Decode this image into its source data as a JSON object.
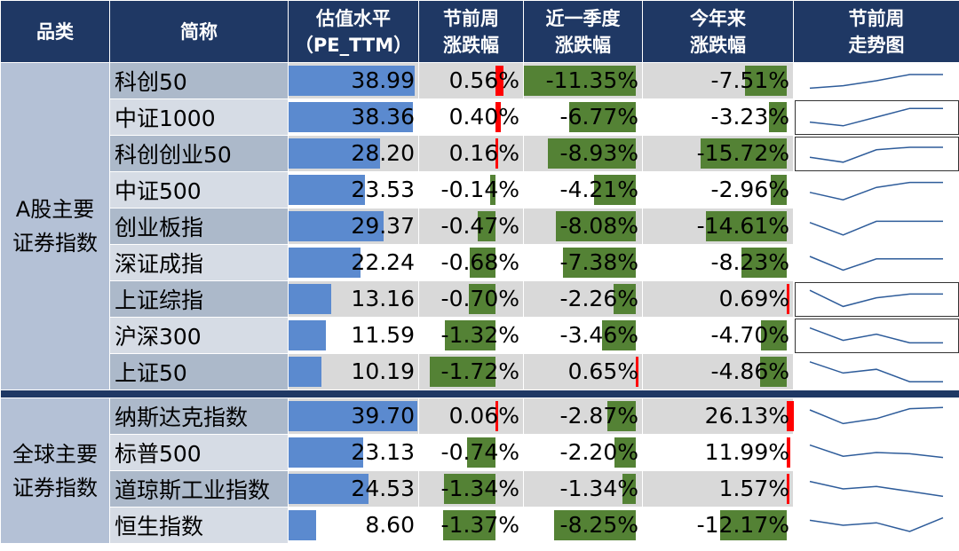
{
  "header": {
    "category": "品类",
    "name": "简称",
    "pe_line1": "估值水平",
    "pe_line2": "（PE_TTM）",
    "week_line1": "节前周",
    "week_line2": "涨跌幅",
    "quarter_line1": "近一季度",
    "quarter_line2": "涨跌幅",
    "ytd_line1": "今年来",
    "ytd_line2": "涨跌幅",
    "trend_line1": "节前周",
    "trend_line2": "走势图"
  },
  "colors": {
    "header": "#1F3864",
    "pe_bar": "#5B8ACF",
    "negative": "#548235",
    "positive": "#FF0000"
  },
  "groups": [
    {
      "label_line1": "A股主要",
      "label_line2": "证券指数",
      "rows": [
        {
          "name": "科创50",
          "pe": "38.99",
          "week": "0.56%",
          "quarter": "-11.35%",
          "ytd": "-7.51%",
          "trend": [
            0.2,
            0.3,
            0.5,
            0.75,
            0.75
          ]
        },
        {
          "name": "中证1000",
          "pe": "38.36",
          "week": "0.40%",
          "quarter": "-6.77%",
          "ytd": "-3.23%",
          "trend": [
            0.3,
            0.15,
            0.5,
            0.85,
            0.85
          ]
        },
        {
          "name": "科创创业50",
          "pe": "28.20",
          "week": "0.16%",
          "quarter": "-8.93%",
          "ytd": "-15.72%",
          "trend": [
            0.35,
            0.15,
            0.65,
            0.75,
            0.75
          ]
        },
        {
          "name": "中证500",
          "pe": "23.53",
          "week": "-0.14%",
          "quarter": "-4.21%",
          "ytd": "-2.96%",
          "trend": [
            0.4,
            0.1,
            0.6,
            0.8,
            0.8
          ]
        },
        {
          "name": "创业板指",
          "pe": "29.37",
          "week": "-0.47%",
          "quarter": "-8.08%",
          "ytd": "-14.61%",
          "trend": [
            0.65,
            0.15,
            0.7,
            0.7,
            0.7
          ]
        },
        {
          "name": "深证成指",
          "pe": "22.24",
          "week": "-0.68%",
          "quarter": "-7.38%",
          "ytd": "-8.23%",
          "trend": [
            0.75,
            0.2,
            0.65,
            0.65,
            0.65
          ]
        },
        {
          "name": "上证综指",
          "pe": "13.16",
          "week": "-0.70%",
          "quarter": "-2.26%",
          "ytd": "0.69%",
          "trend": [
            0.85,
            0.2,
            0.55,
            0.7,
            0.7
          ]
        },
        {
          "name": "沪深300",
          "pe": "11.59",
          "week": "-1.32%",
          "quarter": "-3.46%",
          "ytd": "-4.70%",
          "trend": [
            0.8,
            0.3,
            0.55,
            0.2,
            0.2
          ]
        },
        {
          "name": "上证50",
          "pe": "10.19",
          "week": "-1.72%",
          "quarter": "0.65%",
          "ytd": "-4.86%",
          "trend": [
            0.9,
            0.45,
            0.6,
            0.1,
            0.1
          ]
        }
      ]
    },
    {
      "label_line1": "全球主要",
      "label_line2": "证券指数",
      "rows": [
        {
          "name": "纳斯达克指数",
          "pe": "39.70",
          "week": "0.06%",
          "quarter": "-2.87%",
          "ytd": "26.13%",
          "trend": [
            0.75,
            0.2,
            0.4,
            0.8,
            0.85
          ]
        },
        {
          "name": "标普500",
          "pe": "23.13",
          "week": "-0.74%",
          "quarter": "-2.20%",
          "ytd": "11.99%",
          "trend": [
            0.8,
            0.35,
            0.5,
            0.45,
            0.3
          ]
        },
        {
          "name": "道琼斯工业指数",
          "pe": "24.53",
          "week": "-1.34%",
          "quarter": "-1.34%",
          "ytd": "1.57%",
          "trend": [
            0.8,
            0.5,
            0.6,
            0.4,
            0.2
          ]
        },
        {
          "name": "恒生指数",
          "pe": "8.60",
          "week": "-1.37%",
          "quarter": "-8.25%",
          "ytd": "-12.17%",
          "trend": [
            0.7,
            0.5,
            0.6,
            0.25,
            0.8
          ]
        }
      ]
    }
  ]
}
